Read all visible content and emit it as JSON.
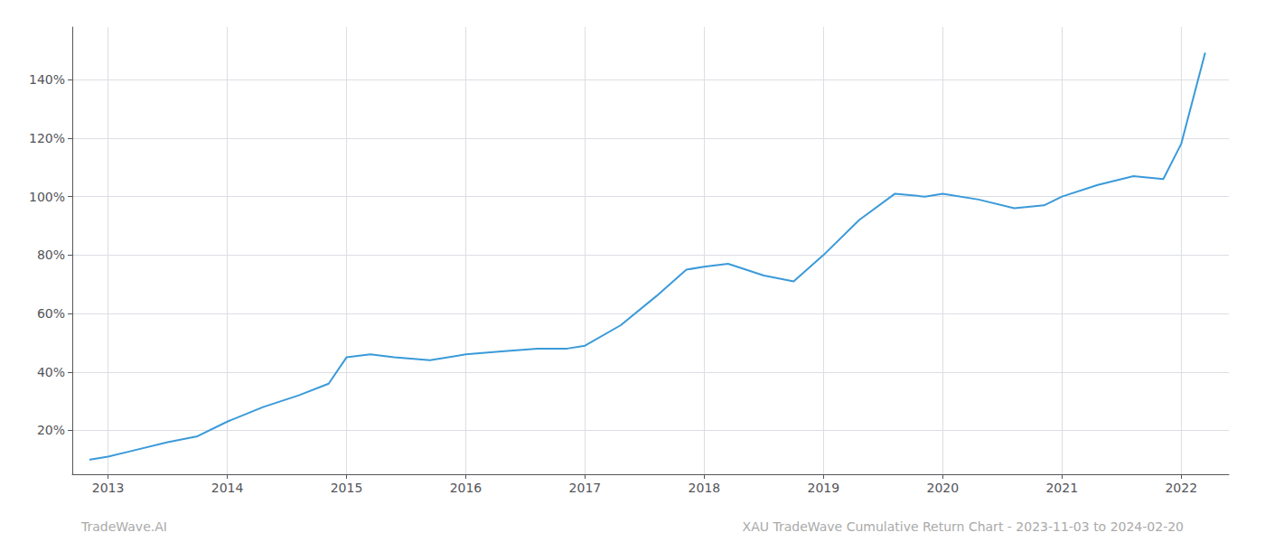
{
  "chart_data": {
    "type": "line",
    "x": [
      2012.85,
      2013.0,
      2013.2,
      2013.5,
      2013.75,
      2014.0,
      2014.3,
      2014.6,
      2014.85,
      2015.0,
      2015.2,
      2015.4,
      2015.7,
      2016.0,
      2016.3,
      2016.6,
      2016.85,
      2017.0,
      2017.3,
      2017.6,
      2017.85,
      2018.0,
      2018.2,
      2018.5,
      2018.75,
      2019.0,
      2019.3,
      2019.6,
      2019.85,
      2020.0,
      2020.3,
      2020.6,
      2020.85,
      2021.0,
      2021.3,
      2021.6,
      2021.85,
      2022.0,
      2022.2
    ],
    "values": [
      10,
      11,
      13,
      16,
      18,
      23,
      28,
      32,
      36,
      45,
      46,
      45,
      44,
      46,
      47,
      48,
      48,
      49,
      56,
      66,
      75,
      76,
      77,
      73,
      71,
      80,
      92,
      101,
      100,
      101,
      99,
      96,
      97,
      100,
      104,
      107,
      106,
      118,
      149
    ],
    "color": "#3a9ad9",
    "xlim": [
      2012.7,
      2022.4
    ],
    "ylim": [
      5,
      158
    ],
    "xticks": [
      2013,
      2014,
      2015,
      2016,
      2017,
      2018,
      2019,
      2020,
      2021,
      2022
    ],
    "yticks": [
      {
        "value": 20,
        "label": "20%"
      },
      {
        "value": 40,
        "label": "40%"
      },
      {
        "value": 60,
        "label": "60%"
      },
      {
        "value": 80,
        "label": "80%"
      },
      {
        "value": 100,
        "label": "100%"
      },
      {
        "value": 120,
        "label": "120%"
      },
      {
        "value": 140,
        "label": "140%"
      }
    ],
    "grid": true,
    "annotations": [
      "TradeWave.AI",
      "XAU TradeWave Cumulative Return Chart - 2023-11-03 to 2024-02-20"
    ]
  }
}
